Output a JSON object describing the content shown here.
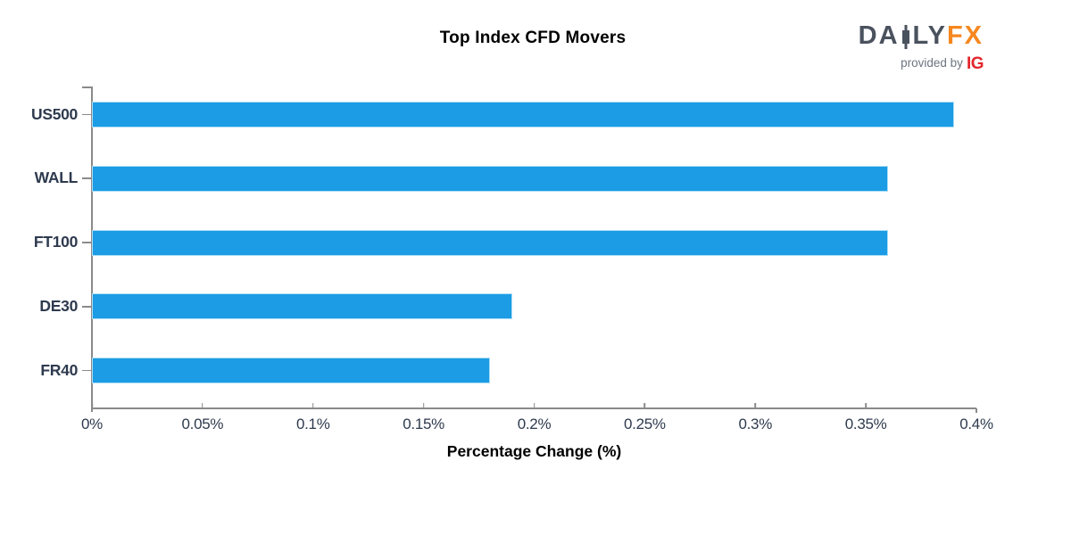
{
  "title": "Top Index CFD Movers",
  "logo": {
    "daily_prefix": "DA",
    "daily_suffix": "LY",
    "fx": "FX",
    "provided_by": "provided by",
    "ig": "IG",
    "dark_color": "#4a525e",
    "fx_color": "#f6871f",
    "ig_color": "#e2262c"
  },
  "chart_data": {
    "type": "bar",
    "orientation": "horizontal",
    "title": "Top Index CFD Movers",
    "categories": [
      "US500",
      "WALL",
      "FT100",
      "DE30",
      "FR40"
    ],
    "values": [
      0.39,
      0.36,
      0.36,
      0.19,
      0.18
    ],
    "value_unit": "%",
    "xlabel": "Percentage Change (%)",
    "ylabel": "",
    "xlim": [
      0,
      0.4
    ],
    "x_tick_values": [
      0,
      0.05,
      0.1,
      0.15,
      0.2,
      0.25,
      0.3,
      0.35,
      0.4
    ],
    "x_tick_labels": [
      "0%",
      "0.05%",
      "0.1%",
      "0.15%",
      "0.2%",
      "0.25%",
      "0.3%",
      "0.35%",
      "0.4%"
    ],
    "grid": false,
    "legend": "none",
    "bar_color": "#1b9ce4",
    "bar_edge_color": "#abddf6",
    "axis_color": "#8a8a8a",
    "tick_label_color": "#2e3a4e"
  }
}
